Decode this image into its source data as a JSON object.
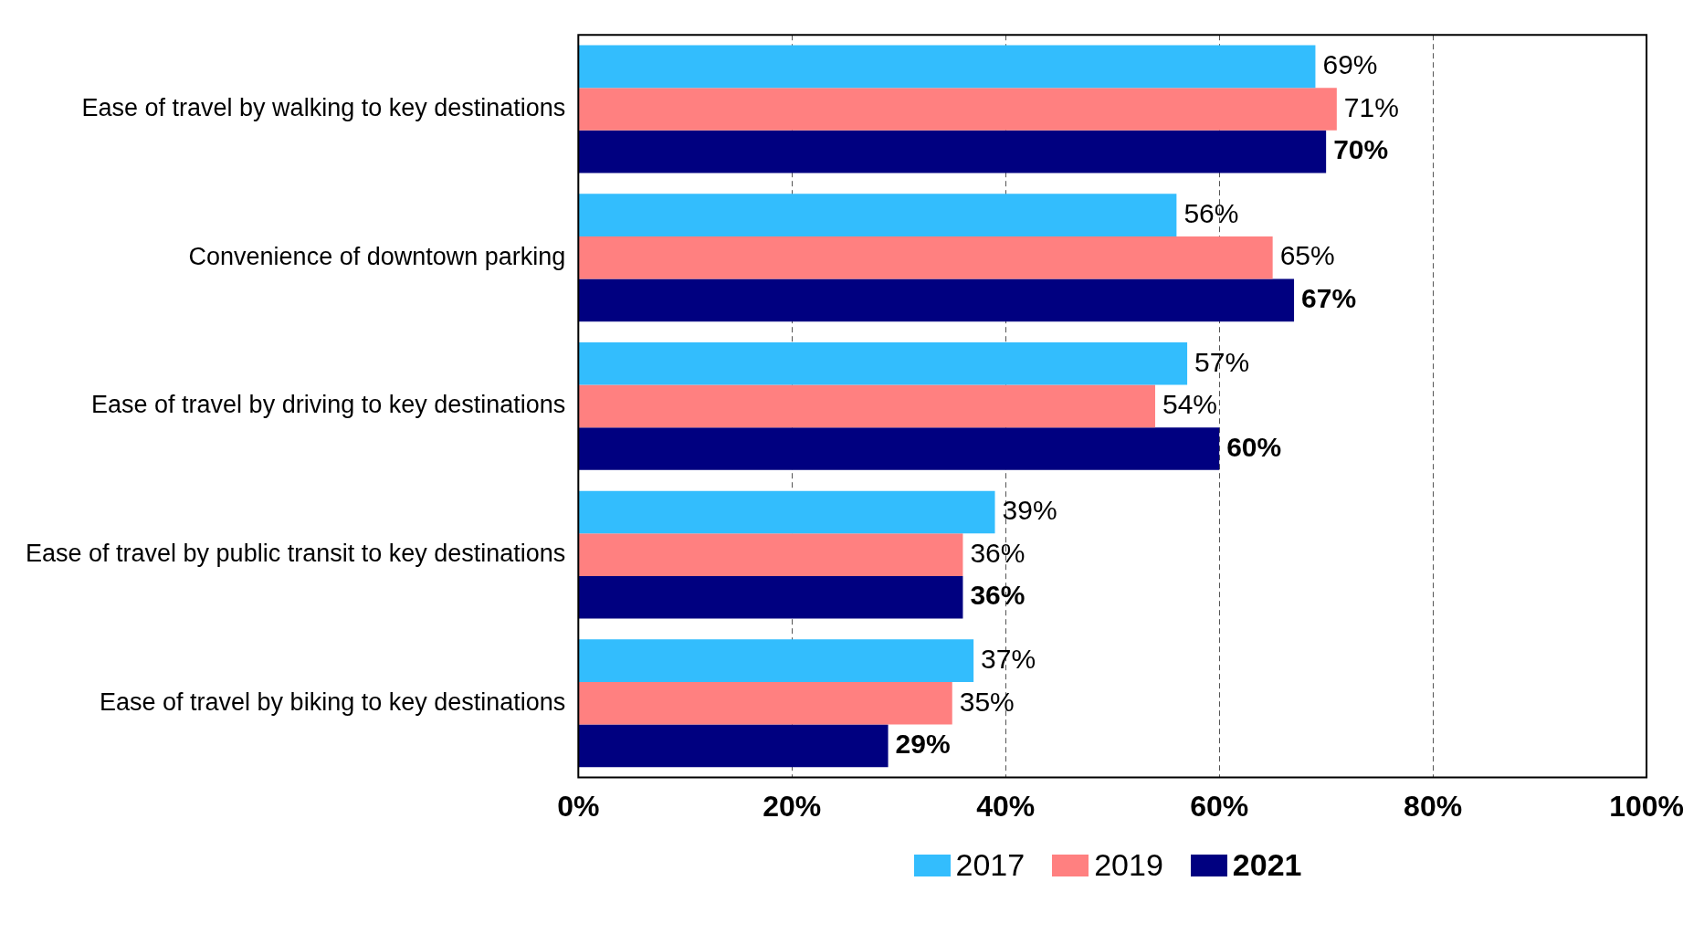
{
  "chart_data": {
    "type": "bar",
    "orientation": "horizontal",
    "categories": [
      "Ease of travel by walking to key destinations",
      "Convenience of downtown parking",
      "Ease of travel by driving to key destinations",
      "Ease of travel by public transit to key destinations",
      "Ease of travel by biking to key destinations"
    ],
    "series": [
      {
        "name": "2017",
        "color": "#33bdfd",
        "values": [
          69,
          56,
          57,
          39,
          37
        ],
        "value_labels": [
          "69%",
          "56%",
          "57%",
          "39%",
          "37%"
        ]
      },
      {
        "name": "2019",
        "color": "#ff8080",
        "values": [
          71,
          65,
          54,
          36,
          35
        ],
        "value_labels": [
          "71%",
          "65%",
          "54%",
          "36%",
          "35%"
        ]
      },
      {
        "name": "2021",
        "color": "#000080",
        "values": [
          70,
          67,
          60,
          36,
          29
        ],
        "value_labels": [
          "70%",
          "67%",
          "60%",
          "36%",
          "29%"
        ]
      }
    ],
    "xlim": [
      0,
      100
    ],
    "xticks": [
      {
        "value": 0,
        "label": "0%"
      },
      {
        "value": 20,
        "label": "20%"
      },
      {
        "value": 40,
        "label": "40%"
      },
      {
        "value": 60,
        "label": "60%"
      },
      {
        "value": 80,
        "label": "80%"
      },
      {
        "value": 100,
        "label": "100%"
      }
    ],
    "grid": "x",
    "legend": "bottom"
  }
}
